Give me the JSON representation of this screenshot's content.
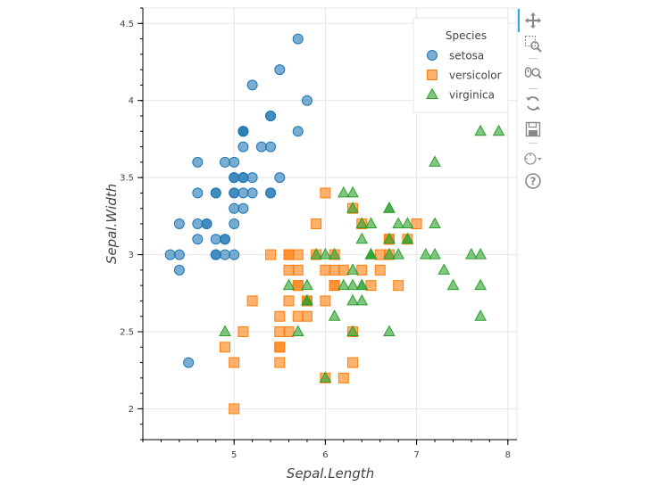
{
  "chart_data": {
    "type": "scatter",
    "title": "",
    "xlabel": "Sepal.Length",
    "ylabel": "Sepal.Width",
    "xlim": [
      4.0,
      8.1
    ],
    "ylim": [
      1.8,
      4.6
    ],
    "x_ticks": [
      "5",
      "6",
      "7",
      "8"
    ],
    "y_ticks": [
      "2",
      "2.5",
      "3",
      "3.5",
      "4",
      "4.5"
    ],
    "grid": true,
    "legend": {
      "title": "Species",
      "placement": "top-right"
    },
    "series": [
      {
        "name": "setosa",
        "marker": "circle",
        "color": "#1f77b4",
        "points": [
          [
            5.1,
            3.5
          ],
          [
            4.9,
            3.0
          ],
          [
            4.7,
            3.2
          ],
          [
            4.6,
            3.1
          ],
          [
            5.0,
            3.6
          ],
          [
            5.4,
            3.9
          ],
          [
            4.6,
            3.4
          ],
          [
            5.0,
            3.4
          ],
          [
            4.4,
            2.9
          ],
          [
            4.9,
            3.1
          ],
          [
            5.4,
            3.7
          ],
          [
            4.8,
            3.4
          ],
          [
            4.8,
            3.0
          ],
          [
            4.3,
            3.0
          ],
          [
            5.8,
            4.0
          ],
          [
            5.7,
            4.4
          ],
          [
            5.4,
            3.9
          ],
          [
            5.1,
            3.5
          ],
          [
            5.7,
            3.8
          ],
          [
            5.1,
            3.8
          ],
          [
            5.4,
            3.4
          ],
          [
            5.1,
            3.7
          ],
          [
            4.6,
            3.6
          ],
          [
            5.1,
            3.3
          ],
          [
            4.8,
            3.4
          ],
          [
            5.0,
            3.0
          ],
          [
            5.0,
            3.4
          ],
          [
            5.2,
            3.5
          ],
          [
            5.2,
            3.4
          ],
          [
            4.7,
            3.2
          ],
          [
            4.8,
            3.1
          ],
          [
            5.4,
            3.4
          ],
          [
            5.2,
            4.1
          ],
          [
            5.5,
            4.2
          ],
          [
            4.9,
            3.1
          ],
          [
            5.0,
            3.2
          ],
          [
            5.5,
            3.5
          ],
          [
            4.9,
            3.6
          ],
          [
            4.4,
            3.0
          ],
          [
            5.1,
            3.4
          ],
          [
            5.0,
            3.5
          ],
          [
            4.5,
            2.3
          ],
          [
            4.4,
            3.2
          ],
          [
            5.0,
            3.5
          ],
          [
            5.1,
            3.8
          ],
          [
            4.8,
            3.0
          ],
          [
            5.1,
            3.8
          ],
          [
            4.6,
            3.2
          ],
          [
            5.3,
            3.7
          ],
          [
            5.0,
            3.3
          ]
        ]
      },
      {
        "name": "versicolor",
        "marker": "square",
        "color": "#ff7f0e",
        "points": [
          [
            7.0,
            3.2
          ],
          [
            6.4,
            3.2
          ],
          [
            6.9,
            3.1
          ],
          [
            5.5,
            2.3
          ],
          [
            6.5,
            2.8
          ],
          [
            5.7,
            2.8
          ],
          [
            6.3,
            3.3
          ],
          [
            4.9,
            2.4
          ],
          [
            6.6,
            2.9
          ],
          [
            5.2,
            2.7
          ],
          [
            5.0,
            2.0
          ],
          [
            5.9,
            3.0
          ],
          [
            6.0,
            2.2
          ],
          [
            6.1,
            2.9
          ],
          [
            5.6,
            2.9
          ],
          [
            6.7,
            3.1
          ],
          [
            5.6,
            3.0
          ],
          [
            5.8,
            2.7
          ],
          [
            6.2,
            2.2
          ],
          [
            5.6,
            2.5
          ],
          [
            5.9,
            3.2
          ],
          [
            6.1,
            2.8
          ],
          [
            6.3,
            2.5
          ],
          [
            6.1,
            2.8
          ],
          [
            6.4,
            2.9
          ],
          [
            6.6,
            3.0
          ],
          [
            6.8,
            2.8
          ],
          [
            6.7,
            3.0
          ],
          [
            6.0,
            2.9
          ],
          [
            5.7,
            2.6
          ],
          [
            5.5,
            2.4
          ],
          [
            5.5,
            2.4
          ],
          [
            5.8,
            2.7
          ],
          [
            6.0,
            2.7
          ],
          [
            5.4,
            3.0
          ],
          [
            6.0,
            3.4
          ],
          [
            6.7,
            3.1
          ],
          [
            6.3,
            2.3
          ],
          [
            5.6,
            3.0
          ],
          [
            5.5,
            2.5
          ],
          [
            5.5,
            2.6
          ],
          [
            6.1,
            3.0
          ],
          [
            5.8,
            2.6
          ],
          [
            5.0,
            2.3
          ],
          [
            5.6,
            2.7
          ],
          [
            5.7,
            3.0
          ],
          [
            5.7,
            2.9
          ],
          [
            6.2,
            2.9
          ],
          [
            5.1,
            2.5
          ],
          [
            5.7,
            2.8
          ]
        ]
      },
      {
        "name": "virginica",
        "marker": "triangle",
        "color": "#2ca02c",
        "points": [
          [
            6.3,
            3.3
          ],
          [
            5.8,
            2.7
          ],
          [
            7.1,
            3.0
          ],
          [
            6.3,
            2.9
          ],
          [
            6.5,
            3.0
          ],
          [
            7.6,
            3.0
          ],
          [
            4.9,
            2.5
          ],
          [
            7.3,
            2.9
          ],
          [
            6.7,
            2.5
          ],
          [
            7.2,
            3.6
          ],
          [
            6.5,
            3.2
          ],
          [
            6.4,
            2.7
          ],
          [
            6.8,
            3.0
          ],
          [
            5.7,
            2.5
          ],
          [
            5.8,
            2.8
          ],
          [
            6.4,
            3.2
          ],
          [
            6.5,
            3.0
          ],
          [
            7.7,
            3.8
          ],
          [
            7.7,
            2.6
          ],
          [
            6.0,
            2.2
          ],
          [
            6.9,
            3.2
          ],
          [
            5.6,
            2.8
          ],
          [
            7.7,
            2.8
          ],
          [
            6.3,
            2.7
          ],
          [
            6.7,
            3.3
          ],
          [
            7.2,
            3.2
          ],
          [
            6.2,
            2.8
          ],
          [
            6.1,
            3.0
          ],
          [
            6.4,
            2.8
          ],
          [
            7.2,
            3.0
          ],
          [
            7.4,
            2.8
          ],
          [
            7.9,
            3.8
          ],
          [
            6.4,
            2.8
          ],
          [
            6.3,
            2.8
          ],
          [
            6.1,
            2.6
          ],
          [
            7.7,
            3.0
          ],
          [
            6.3,
            3.4
          ],
          [
            6.4,
            3.1
          ],
          [
            6.0,
            3.0
          ],
          [
            6.9,
            3.1
          ],
          [
            6.7,
            3.1
          ],
          [
            6.9,
            3.1
          ],
          [
            5.8,
            2.7
          ],
          [
            6.8,
            3.2
          ],
          [
            6.7,
            3.3
          ],
          [
            6.7,
            3.0
          ],
          [
            6.3,
            2.5
          ],
          [
            6.5,
            3.0
          ],
          [
            6.2,
            3.4
          ],
          [
            5.9,
            3.0
          ]
        ]
      }
    ]
  },
  "toolbar": {
    "tools": [
      "pan-icon",
      "box-zoom-icon",
      "wheel-zoom-icon",
      "reset-icon",
      "save-icon",
      "hover-icon",
      "help-icon"
    ]
  }
}
